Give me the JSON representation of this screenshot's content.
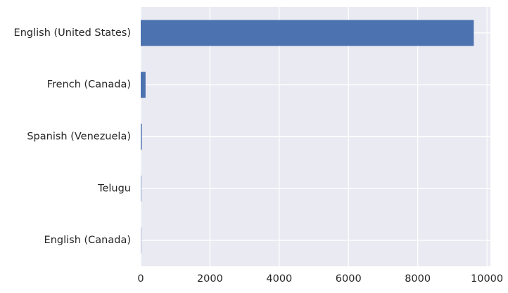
{
  "chart_data": {
    "type": "bar",
    "orientation": "horizontal",
    "title": "",
    "xlabel": "",
    "ylabel": "",
    "categories": [
      "English (United States)",
      "French (Canada)",
      "Spanish (Venezuela)",
      "Telugu",
      "English (Canada)"
    ],
    "values": [
      9620,
      140,
      30,
      12,
      8
    ],
    "xlim": [
      0,
      10100
    ],
    "x_ticks": [
      0,
      2000,
      4000,
      6000,
      8000,
      10000
    ],
    "x_tick_labels": [
      "0",
      "2000",
      "4000",
      "6000",
      "8000",
      "10000"
    ],
    "grid": true,
    "colors": {
      "bar": "#4c72b0",
      "plot_background": "#eaeaf2",
      "grid": "#ffffff"
    }
  }
}
